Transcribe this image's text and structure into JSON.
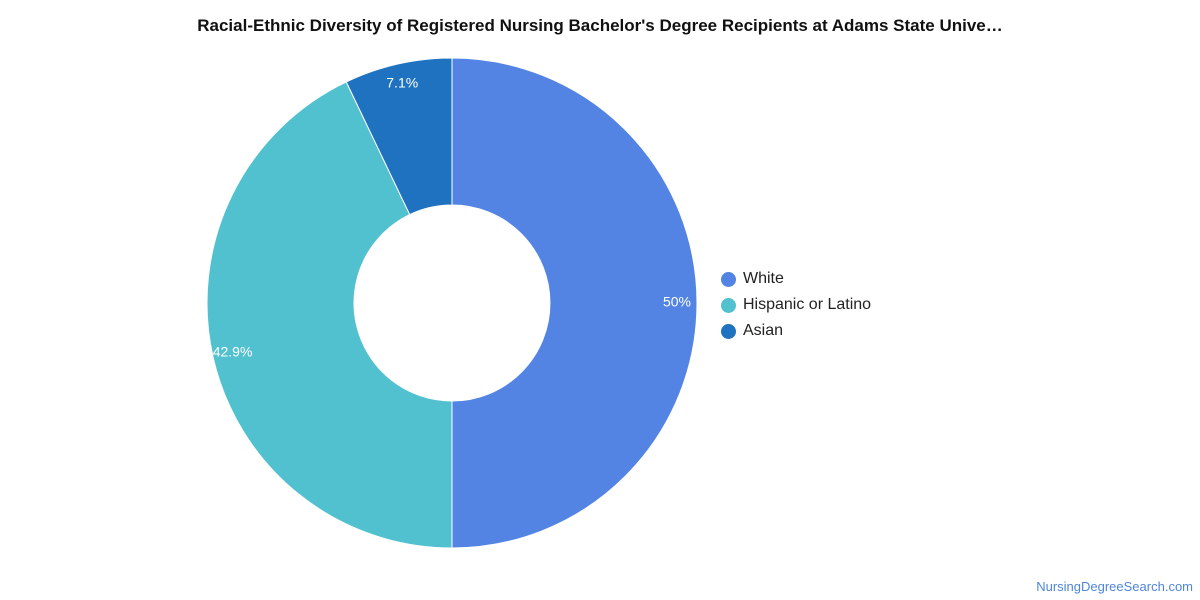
{
  "chart_data": {
    "type": "pie",
    "subtype": "donut",
    "title": "Racial-Ethnic Diversity of Registered Nursing Bachelor's Degree Recipients at Adams State Unive…",
    "slices": [
      {
        "label": "White",
        "value": 50,
        "display": "50%",
        "color": "#5384e3"
      },
      {
        "label": "Hispanic or Latino",
        "value": 42.9,
        "display": "42.9%",
        "color": "#52c1cf"
      },
      {
        "label": "Asian",
        "value": 7.1,
        "display": "7.1%",
        "color": "#1f72bf"
      }
    ],
    "legend_position": "right"
  },
  "source": "NursingDegreeSearch.com"
}
